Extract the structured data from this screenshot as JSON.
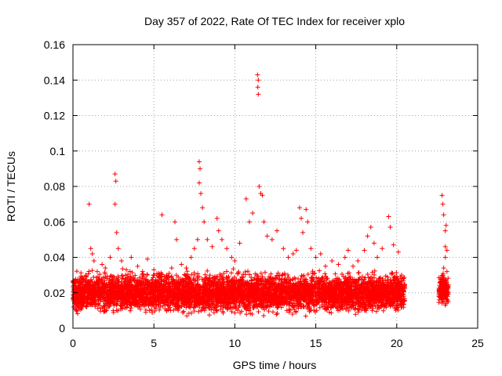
{
  "chart_data": {
    "type": "scatter",
    "title": "Day 357 of 2022, Rate Of TEC Index for receiver xplo",
    "xlabel": "GPS time / hours",
    "ylabel": "ROTI / TECUs",
    "xlim": [
      0,
      25
    ],
    "ylim": [
      0,
      0.16
    ],
    "x_ticks": [
      "0",
      "5",
      "10",
      "15",
      "20",
      "25"
    ],
    "y_ticks": [
      "0",
      "0.02",
      "0.04",
      "0.06",
      "0.08",
      "0.1",
      "0.12",
      "0.14",
      "0.16"
    ],
    "grid": true,
    "marker": "+",
    "color": "#ff0000",
    "series": [
      {
        "points": [
          [
            0.1,
            0.026
          ],
          [
            0.3,
            0.018
          ],
          [
            0.5,
            0.021
          ],
          [
            0.8,
            0.03
          ],
          [
            1.0,
            0.07
          ],
          [
            1.1,
            0.045
          ],
          [
            1.2,
            0.042
          ],
          [
            1.3,
            0.038
          ],
          [
            1.5,
            0.032
          ],
          [
            1.8,
            0.036
          ],
          [
            2.0,
            0.034
          ],
          [
            2.3,
            0.04
          ],
          [
            2.6,
            0.087
          ],
          [
            2.65,
            0.083
          ],
          [
            2.6,
            0.07
          ],
          [
            2.7,
            0.054
          ],
          [
            2.8,
            0.045
          ],
          [
            3.0,
            0.038
          ],
          [
            3.3,
            0.033
          ],
          [
            3.6,
            0.04
          ],
          [
            4.0,
            0.035
          ],
          [
            4.3,
            0.032
          ],
          [
            4.6,
            0.039
          ],
          [
            5.0,
            0.033
          ],
          [
            5.3,
            0.031
          ],
          [
            5.5,
            0.064
          ],
          [
            5.8,
            0.03
          ],
          [
            6.1,
            0.034
          ],
          [
            6.3,
            0.06
          ],
          [
            6.4,
            0.05
          ],
          [
            6.7,
            0.036
          ],
          [
            7.0,
            0.034
          ],
          [
            7.3,
            0.04
          ],
          [
            7.5,
            0.045
          ],
          [
            7.7,
            0.05
          ],
          [
            7.8,
            0.094
          ],
          [
            7.85,
            0.09
          ],
          [
            7.8,
            0.082
          ],
          [
            7.9,
            0.076
          ],
          [
            8.0,
            0.068
          ],
          [
            8.1,
            0.06
          ],
          [
            8.3,
            0.05
          ],
          [
            8.6,
            0.046
          ],
          [
            8.9,
            0.062
          ],
          [
            9.0,
            0.055
          ],
          [
            9.2,
            0.05
          ],
          [
            9.5,
            0.045
          ],
          [
            9.8,
            0.04
          ],
          [
            10.0,
            0.038
          ],
          [
            10.3,
            0.048
          ],
          [
            10.7,
            0.073
          ],
          [
            10.9,
            0.06
          ],
          [
            11.1,
            0.065
          ],
          [
            11.4,
            0.143
          ],
          [
            11.45,
            0.14
          ],
          [
            11.42,
            0.136
          ],
          [
            11.45,
            0.132
          ],
          [
            11.5,
            0.08
          ],
          [
            11.6,
            0.076
          ],
          [
            11.7,
            0.075
          ],
          [
            11.8,
            0.06
          ],
          [
            12.0,
            0.052
          ],
          [
            12.3,
            0.05
          ],
          [
            12.6,
            0.055
          ],
          [
            13.0,
            0.045
          ],
          [
            13.3,
            0.04
          ],
          [
            13.6,
            0.042
          ],
          [
            13.8,
            0.044
          ],
          [
            14.0,
            0.068
          ],
          [
            14.1,
            0.062
          ],
          [
            14.2,
            0.054
          ],
          [
            14.4,
            0.067
          ],
          [
            14.5,
            0.06
          ],
          [
            14.7,
            0.045
          ],
          [
            15.0,
            0.04
          ],
          [
            15.3,
            0.042
          ],
          [
            15.6,
            0.035
          ],
          [
            16.0,
            0.038
          ],
          [
            16.4,
            0.036
          ],
          [
            16.8,
            0.04
          ],
          [
            17.0,
            0.044
          ],
          [
            17.3,
            0.035
          ],
          [
            17.6,
            0.038
          ],
          [
            18.0,
            0.044
          ],
          [
            18.2,
            0.052
          ],
          [
            18.4,
            0.057
          ],
          [
            18.6,
            0.048
          ],
          [
            18.8,
            0.04
          ],
          [
            19.1,
            0.045
          ],
          [
            19.5,
            0.063
          ],
          [
            19.6,
            0.057
          ],
          [
            19.8,
            0.047
          ],
          [
            20.1,
            0.043
          ],
          [
            20.3,
            0.03
          ],
          [
            20.4,
            0.028
          ],
          [
            22.8,
            0.075
          ],
          [
            22.85,
            0.07
          ],
          [
            22.9,
            0.064
          ],
          [
            23.0,
            0.055
          ],
          [
            23.05,
            0.058
          ],
          [
            23.0,
            0.046
          ],
          [
            23.1,
            0.044
          ],
          [
            23.0,
            0.04
          ],
          [
            22.9,
            0.034
          ],
          [
            22.85,
            0.03
          ],
          [
            23.1,
            0.032
          ],
          [
            22.8,
            0.028
          ],
          [
            23.0,
            0.013
          ],
          [
            22.9,
            0.022
          ],
          [
            23.05,
            0.018
          ]
        ]
      }
    ],
    "dense_bands": [
      {
        "x": [
          0.0,
          20.5
        ],
        "y": [
          0.006,
          0.034
        ]
      },
      {
        "x": [
          22.6,
          23.2
        ],
        "y": [
          0.01,
          0.034
        ]
      }
    ]
  }
}
